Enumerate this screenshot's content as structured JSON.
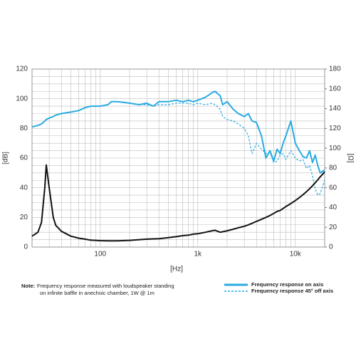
{
  "chart_data": {
    "type": "line",
    "x_label": "[Hz]",
    "y_label": "[dB]",
    "y2_label": "[Ω]",
    "log_x": true,
    "grid": true,
    "xlim": [
      20,
      20000
    ],
    "ylim": [
      0,
      120
    ],
    "y2lim": [
      0,
      180
    ],
    "xticks": [
      100,
      {
        "value": 1000,
        "label": "1k"
      },
      {
        "value": 10000,
        "label": "10k"
      }
    ],
    "xgrid": [
      20,
      30,
      40,
      50,
      60,
      70,
      80,
      90,
      200,
      300,
      400,
      500,
      600,
      700,
      800,
      900,
      2000,
      3000,
      4000,
      5000,
      6000,
      7000,
      8000,
      9000,
      20000
    ],
    "yticks": [
      0,
      20,
      40,
      60,
      80,
      100,
      120
    ],
    "ygrid": [
      5,
      10,
      15,
      25,
      30,
      35,
      45,
      50,
      55,
      65,
      70,
      75,
      85,
      90,
      95,
      105,
      110,
      115
    ],
    "y2ticks": [
      0,
      20,
      40,
      60,
      80,
      100,
      120,
      140,
      160,
      180
    ],
    "x": [
      20,
      23,
      25,
      27,
      28,
      30,
      33,
      35,
      40,
      50,
      60,
      70,
      80,
      100,
      120,
      130,
      150,
      200,
      250,
      300,
      350,
      400,
      500,
      600,
      700,
      800,
      900,
      1000,
      1200,
      1400,
      1500,
      1700,
      1800,
      2000,
      2300,
      2600,
      3000,
      3300,
      3600,
      4000,
      4500,
      5000,
      5500,
      6000,
      6500,
      7000,
      7500,
      8000,
      9000,
      10000,
      11000,
      12000,
      13000,
      14000,
      15000,
      16000,
      17000,
      18000,
      20000
    ],
    "series": [
      {
        "name": "Frequency response on axis",
        "color": "#29abe2",
        "dash": false,
        "values": [
          81,
          82,
          83,
          85,
          86,
          87,
          88,
          89,
          90,
          91,
          92,
          94,
          95,
          95,
          96,
          98,
          98,
          97,
          96,
          97,
          95,
          98,
          98,
          99,
          98,
          99,
          98,
          99,
          101,
          104,
          105,
          102,
          96,
          98,
          93,
          90,
          88,
          90,
          85,
          84,
          75,
          60,
          65,
          58,
          66,
          63,
          70,
          75,
          85,
          70,
          65,
          61,
          60,
          65,
          57,
          62,
          55,
          50,
          52
        ]
      },
      {
        "name": "Frequency response 45° off axis",
        "color": "#29abe2",
        "dash": true,
        "values": [
          81,
          82,
          83,
          85,
          86,
          87,
          88,
          89,
          90,
          91,
          92,
          94,
          95,
          95,
          96,
          98,
          98,
          97,
          96,
          96,
          95,
          96,
          96,
          97,
          97,
          97,
          96,
          97,
          96,
          97,
          96,
          93,
          88,
          86,
          85,
          83,
          80,
          75,
          63,
          70,
          66,
          63,
          64,
          57,
          58,
          62,
          63,
          59,
          65,
          60,
          58,
          59,
          53,
          55,
          48,
          39,
          35,
          36,
          45
        ]
      },
      {
        "color": "#111111",
        "dash": false,
        "axis": "y2",
        "values": [
          11,
          15,
          25,
          60,
          83,
          60,
          30,
          22,
          16,
          11,
          9,
          8,
          7,
          6.5,
          6.3,
          6.3,
          6.3,
          6.8,
          7.5,
          8,
          8.3,
          8.5,
          9.5,
          10.5,
          11.5,
          12,
          13,
          13.5,
          15,
          16.5,
          17,
          15,
          15.5,
          16.5,
          18,
          19.5,
          21,
          22.5,
          24,
          26,
          28,
          30,
          32,
          34,
          36,
          37,
          39,
          41,
          44,
          47,
          50,
          53,
          56,
          59,
          62,
          65,
          68,
          71,
          76
        ]
      }
    ],
    "note_label": "Note:",
    "note_lines": [
      "Frequency response measured with loudspeaker standing",
      "on infinite baffle in anechoic chamber, 1W @ 1m"
    ]
  }
}
